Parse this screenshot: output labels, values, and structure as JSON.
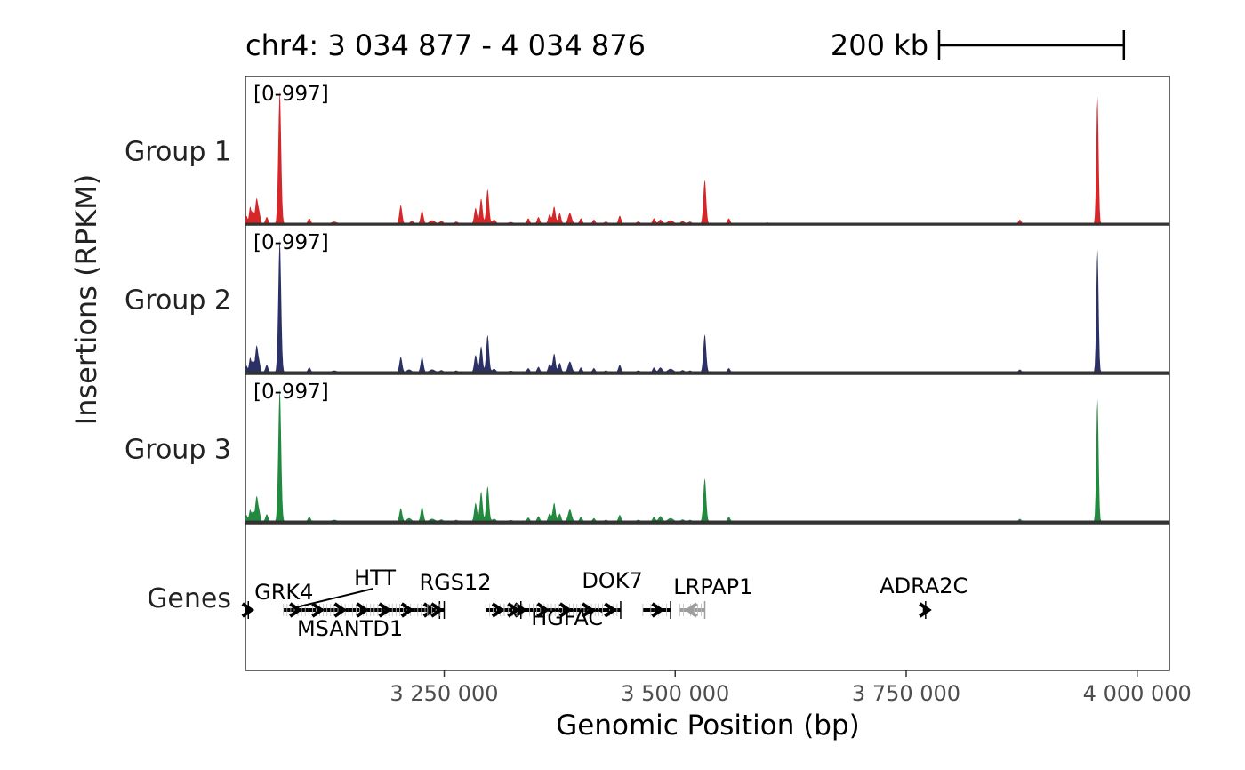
{
  "chart_data": {
    "type": "area",
    "region_label": "chr4: 3 034 877 - 4 034 876",
    "scale_bar": {
      "label": "200 kb",
      "length_bp": 200000
    },
    "ylabel": "Insertions (RPKM)",
    "xlabel": "Genomic Position (bp)",
    "xlim": [
      3034877,
      4034876
    ],
    "x_ticks": [
      {
        "value": 3250000,
        "label": "3 250 000"
      },
      {
        "value": 3500000,
        "label": "3 500 000"
      },
      {
        "value": 3750000,
        "label": "3 750 000"
      },
      {
        "value": 4000000,
        "label": "4 000 000"
      }
    ],
    "genes_track_label": "Genes",
    "tracks": [
      {
        "name": "Group 1",
        "range_label": "[0-997]",
        "ylim": [
          0,
          997
        ],
        "color": "#d62728",
        "peaks": [
          [
            3036000,
            60,
            1000
          ],
          [
            3040000,
            130,
            1200
          ],
          [
            3043000,
            90,
            1000
          ],
          [
            3047000,
            190,
            1500
          ],
          [
            3050000,
            70,
            1200
          ],
          [
            3058000,
            50,
            1500
          ],
          [
            3072000,
            997,
            1500
          ],
          [
            3104000,
            40,
            1500
          ],
          [
            3131000,
            15,
            3000
          ],
          [
            3203000,
            140,
            1500
          ],
          [
            3215000,
            20,
            2000
          ],
          [
            3226000,
            100,
            1500
          ],
          [
            3237000,
            25,
            3000
          ],
          [
            3247000,
            20,
            2000
          ],
          [
            3263000,
            15,
            2000
          ],
          [
            3284000,
            120,
            1500
          ],
          [
            3290000,
            190,
            1500
          ],
          [
            3297000,
            260,
            1500
          ],
          [
            3304000,
            30,
            2000
          ],
          [
            3322000,
            12,
            3000
          ],
          [
            3341000,
            40,
            1500
          ],
          [
            3352000,
            50,
            1500
          ],
          [
            3364000,
            70,
            1500
          ],
          [
            3369000,
            130,
            1500
          ],
          [
            3375000,
            80,
            1500
          ],
          [
            3386000,
            80,
            2000
          ],
          [
            3398000,
            40,
            1500
          ],
          [
            3412000,
            30,
            1500
          ],
          [
            3425000,
            15,
            2000
          ],
          [
            3440000,
            60,
            1500
          ],
          [
            3460000,
            15,
            2000
          ],
          [
            3477000,
            40,
            1500
          ],
          [
            3484000,
            30,
            2000
          ],
          [
            3495000,
            25,
            3000
          ],
          [
            3508000,
            20,
            2000
          ],
          [
            3516000,
            15,
            2000
          ],
          [
            3532000,
            330,
            1500
          ],
          [
            3558000,
            40,
            1500
          ],
          [
            3600000,
            8,
            3000
          ],
          [
            3700000,
            5,
            3000
          ],
          [
            3873000,
            30,
            1500
          ],
          [
            3957000,
            960,
            1200
          ]
        ]
      },
      {
        "name": "Group 2",
        "range_label": "[0-997]",
        "ylim": [
          0,
          997
        ],
        "color": "#2b3167",
        "peaks": [
          [
            3036000,
            50,
            1000
          ],
          [
            3040000,
            110,
            1200
          ],
          [
            3043000,
            80,
            1000
          ],
          [
            3047000,
            200,
            1500
          ],
          [
            3050000,
            60,
            1200
          ],
          [
            3058000,
            55,
            1500
          ],
          [
            3072000,
            997,
            1500
          ],
          [
            3104000,
            35,
            1500
          ],
          [
            3131000,
            12,
            3000
          ],
          [
            3203000,
            115,
            1500
          ],
          [
            3212000,
            20,
            2500
          ],
          [
            3226000,
            115,
            1500
          ],
          [
            3237000,
            20,
            3000
          ],
          [
            3247000,
            15,
            2000
          ],
          [
            3263000,
            12,
            2000
          ],
          [
            3284000,
            130,
            1500
          ],
          [
            3290000,
            195,
            1500
          ],
          [
            3297000,
            280,
            1500
          ],
          [
            3304000,
            25,
            2000
          ],
          [
            3322000,
            10,
            3000
          ],
          [
            3341000,
            30,
            1500
          ],
          [
            3352000,
            40,
            1500
          ],
          [
            3364000,
            60,
            1500
          ],
          [
            3369000,
            140,
            1500
          ],
          [
            3375000,
            70,
            1500
          ],
          [
            3386000,
            80,
            2000
          ],
          [
            3398000,
            35,
            1500
          ],
          [
            3412000,
            30,
            1500
          ],
          [
            3425000,
            12,
            2000
          ],
          [
            3440000,
            55,
            1500
          ],
          [
            3460000,
            12,
            2000
          ],
          [
            3477000,
            35,
            1500
          ],
          [
            3484000,
            35,
            2000
          ],
          [
            3495000,
            25,
            3000
          ],
          [
            3508000,
            15,
            2000
          ],
          [
            3516000,
            12,
            2000
          ],
          [
            3532000,
            285,
            1500
          ],
          [
            3558000,
            30,
            1500
          ],
          [
            3600000,
            6,
            3000
          ],
          [
            3700000,
            4,
            3000
          ],
          [
            3873000,
            20,
            1500
          ],
          [
            3957000,
            930,
            1200
          ]
        ]
      },
      {
        "name": "Group 3",
        "range_label": "[0-997]",
        "ylim": [
          0,
          997
        ],
        "color": "#218a3e",
        "peaks": [
          [
            3036000,
            50,
            1000
          ],
          [
            3040000,
            90,
            1200
          ],
          [
            3043000,
            70,
            1000
          ],
          [
            3047000,
            190,
            1500
          ],
          [
            3050000,
            60,
            1200
          ],
          [
            3058000,
            55,
            1500
          ],
          [
            3072000,
            997,
            1500
          ],
          [
            3104000,
            35,
            1500
          ],
          [
            3131000,
            12,
            3000
          ],
          [
            3203000,
            100,
            1500
          ],
          [
            3212000,
            25,
            2500
          ],
          [
            3226000,
            110,
            1500
          ],
          [
            3237000,
            20,
            3000
          ],
          [
            3247000,
            15,
            2000
          ],
          [
            3263000,
            12,
            2000
          ],
          [
            3284000,
            140,
            1500
          ],
          [
            3290000,
            225,
            1500
          ],
          [
            3297000,
            265,
            1500
          ],
          [
            3304000,
            20,
            2000
          ],
          [
            3322000,
            10,
            3000
          ],
          [
            3341000,
            30,
            1500
          ],
          [
            3352000,
            40,
            1500
          ],
          [
            3364000,
            60,
            1500
          ],
          [
            3369000,
            140,
            1500
          ],
          [
            3375000,
            60,
            1500
          ],
          [
            3386000,
            90,
            2000
          ],
          [
            3398000,
            35,
            1500
          ],
          [
            3412000,
            25,
            1500
          ],
          [
            3425000,
            12,
            2000
          ],
          [
            3440000,
            50,
            1500
          ],
          [
            3460000,
            12,
            2000
          ],
          [
            3477000,
            35,
            1500
          ],
          [
            3484000,
            40,
            2000
          ],
          [
            3495000,
            25,
            3000
          ],
          [
            3508000,
            15,
            2000
          ],
          [
            3516000,
            12,
            2000
          ],
          [
            3532000,
            325,
            1500
          ],
          [
            3558000,
            35,
            1500
          ],
          [
            3600000,
            6,
            3000
          ],
          [
            3700000,
            4,
            3000
          ],
          [
            3873000,
            20,
            1500
          ],
          [
            3957000,
            930,
            1200
          ]
        ]
      }
    ],
    "genes": [
      {
        "name": "GRK4",
        "start": 3035000,
        "end": 3038000,
        "strand": "+",
        "color": "#000000"
      },
      {
        "name": "HTT",
        "start": 3076000,
        "end": 3245000,
        "strand": "+",
        "color": "#000000"
      },
      {
        "name": "MSANTD1",
        "start": 3232000,
        "end": 3250000,
        "strand": "+",
        "color": "#000000"
      },
      {
        "name": "RGS12",
        "start": 3295000,
        "end": 3441000,
        "strand": "+",
        "color": "#000000"
      },
      {
        "name": "HGFAC",
        "start": 3315000,
        "end": 3333000,
        "strand": "+",
        "color": "#000000"
      },
      {
        "name": "DOK7",
        "start": 3465000,
        "end": 3495000,
        "strand": "+",
        "color": "#000000"
      },
      {
        "name": "LRPAP1",
        "start": 3505000,
        "end": 3532000,
        "strand": "-",
        "color": "#9e9e9e"
      },
      {
        "name": "ADRA2C",
        "start": 3768000,
        "end": 3771000,
        "strand": "+",
        "color": "#000000"
      }
    ]
  }
}
